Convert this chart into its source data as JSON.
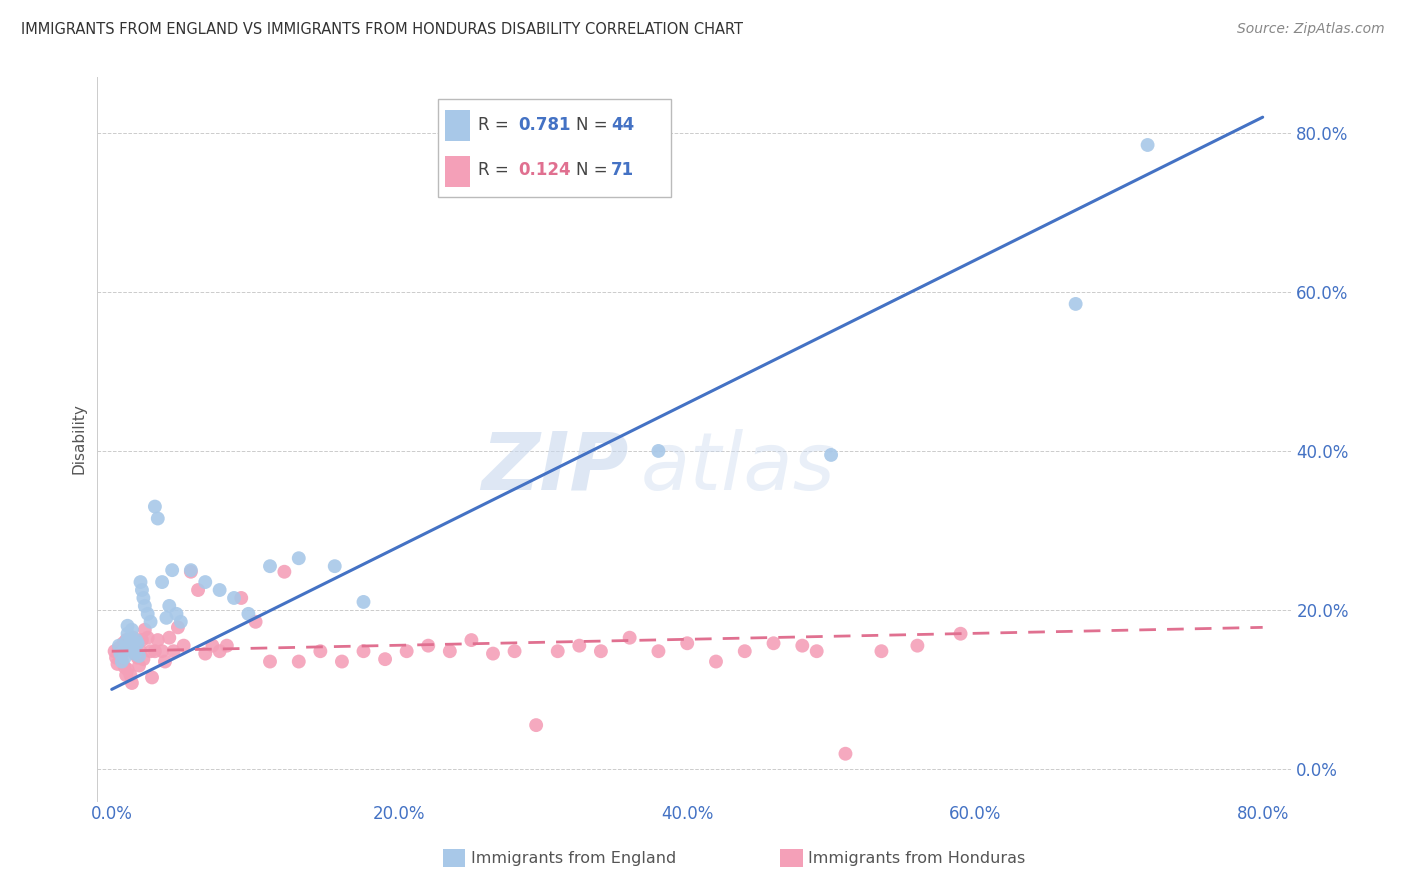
{
  "title": "IMMIGRANTS FROM ENGLAND VS IMMIGRANTS FROM HONDURAS DISABILITY CORRELATION CHART",
  "source": "Source: ZipAtlas.com",
  "ylabel": "Disability",
  "xlim": [
    -0.01,
    0.82
  ],
  "ylim": [
    -0.04,
    0.87
  ],
  "xticks": [
    0.0,
    0.2,
    0.4,
    0.6,
    0.8
  ],
  "yticks": [
    0.0,
    0.2,
    0.4,
    0.6,
    0.8
  ],
  "england_color": "#a8c8e8",
  "england_line_color": "#4472c4",
  "honduras_color": "#f4a0b8",
  "honduras_line_color": "#e07090",
  "england_R": "0.781",
  "england_N": "44",
  "honduras_R": "0.124",
  "honduras_N": "71",
  "eng_line_x0": 0.0,
  "eng_line_y0": 0.1,
  "eng_line_x1": 0.8,
  "eng_line_y1": 0.82,
  "hon_line_x0": 0.0,
  "hon_line_y0": 0.148,
  "hon_line_x1": 0.8,
  "hon_line_y1": 0.178,
  "england_x": [
    0.005,
    0.006,
    0.007,
    0.008,
    0.009,
    0.01,
    0.01,
    0.011,
    0.011,
    0.012,
    0.013,
    0.014,
    0.015,
    0.016,
    0.017,
    0.018,
    0.019,
    0.02,
    0.021,
    0.022,
    0.023,
    0.025,
    0.027,
    0.03,
    0.032,
    0.035,
    0.038,
    0.04,
    0.042,
    0.045,
    0.048,
    0.055,
    0.065,
    0.075,
    0.085,
    0.095,
    0.11,
    0.13,
    0.155,
    0.175,
    0.38,
    0.5,
    0.67,
    0.72
  ],
  "england_y": [
    0.155,
    0.145,
    0.135,
    0.148,
    0.14,
    0.16,
    0.15,
    0.17,
    0.18,
    0.155,
    0.165,
    0.175,
    0.15,
    0.145,
    0.162,
    0.158,
    0.142,
    0.235,
    0.225,
    0.215,
    0.205,
    0.195,
    0.185,
    0.33,
    0.315,
    0.235,
    0.19,
    0.205,
    0.25,
    0.195,
    0.185,
    0.25,
    0.235,
    0.225,
    0.215,
    0.195,
    0.255,
    0.265,
    0.255,
    0.21,
    0.4,
    0.395,
    0.585,
    0.785
  ],
  "honduras_x": [
    0.002,
    0.003,
    0.004,
    0.005,
    0.006,
    0.007,
    0.008,
    0.009,
    0.01,
    0.01,
    0.011,
    0.012,
    0.013,
    0.014,
    0.015,
    0.016,
    0.017,
    0.018,
    0.019,
    0.02,
    0.021,
    0.022,
    0.023,
    0.025,
    0.027,
    0.028,
    0.03,
    0.032,
    0.035,
    0.037,
    0.04,
    0.043,
    0.046,
    0.05,
    0.055,
    0.06,
    0.065,
    0.07,
    0.075,
    0.08,
    0.09,
    0.1,
    0.11,
    0.12,
    0.13,
    0.145,
    0.16,
    0.175,
    0.19,
    0.205,
    0.22,
    0.235,
    0.25,
    0.265,
    0.28,
    0.295,
    0.31,
    0.325,
    0.34,
    0.36,
    0.38,
    0.4,
    0.42,
    0.44,
    0.46,
    0.49,
    0.51,
    0.535,
    0.56,
    0.59,
    0.48
  ],
  "honduras_y": [
    0.148,
    0.14,
    0.132,
    0.152,
    0.145,
    0.138,
    0.158,
    0.128,
    0.162,
    0.118,
    0.125,
    0.155,
    0.118,
    0.108,
    0.165,
    0.145,
    0.155,
    0.14,
    0.13,
    0.148,
    0.162,
    0.138,
    0.175,
    0.165,
    0.148,
    0.115,
    0.148,
    0.162,
    0.148,
    0.135,
    0.165,
    0.148,
    0.178,
    0.155,
    0.248,
    0.225,
    0.145,
    0.155,
    0.148,
    0.155,
    0.215,
    0.185,
    0.135,
    0.248,
    0.135,
    0.148,
    0.135,
    0.148,
    0.138,
    0.148,
    0.155,
    0.148,
    0.162,
    0.145,
    0.148,
    0.055,
    0.148,
    0.155,
    0.148,
    0.165,
    0.148,
    0.158,
    0.135,
    0.148,
    0.158,
    0.148,
    0.019,
    0.148,
    0.155,
    0.17,
    0.155
  ],
  "watermark_zip": "ZIP",
  "watermark_atlas": "atlas",
  "background_color": "#ffffff",
  "grid_color": "#cccccc"
}
